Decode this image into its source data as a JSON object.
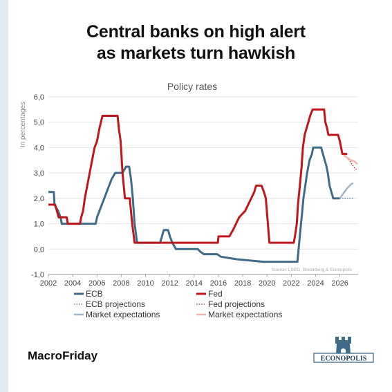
{
  "header": {
    "title_line1": "Central banks on high alert",
    "title_line2": "as markets turn hawkish"
  },
  "footer": {
    "brand": "MacroFriday",
    "logo_text": "ECONOPOLIS"
  },
  "colors": {
    "ecb": "#3f6a88",
    "ecb_projection": "#3f6a88",
    "ecb_market": "#9fb4c5",
    "fed": "#c0161b",
    "fed_projection": "#c0161b",
    "fed_market": "#f2b5ad"
  },
  "chart_data": {
    "type": "line",
    "title": "Policy rates",
    "ylabel": "In percentages",
    "xlabel": "",
    "xlim": [
      2002,
      2027.5
    ],
    "ylim": [
      -1.0,
      6.0
    ],
    "x_ticks": [
      2002,
      2004,
      2006,
      2008,
      2010,
      2012,
      2014,
      2016,
      2018,
      2020,
      2022,
      2024,
      2026
    ],
    "x_tick_labels": [
      "2002",
      "2004",
      "2006",
      "2008",
      "2010",
      "2012",
      "2014",
      "2016",
      "2018",
      "2020",
      "2022",
      "2024",
      "2026"
    ],
    "y_ticks": [
      -1.0,
      0.0,
      1.0,
      2.0,
      3.0,
      4.0,
      5.0,
      6.0
    ],
    "y_tick_labels": [
      "-1,0",
      "0,0",
      "1,0",
      "2,0",
      "3,0",
      "4,0",
      "5,0",
      "6,0"
    ],
    "grid": "horizontal",
    "source_note": "Source: LSEG, Bloomberg & Econopolis",
    "legend": [
      {
        "label": "ECB",
        "style": "solid",
        "color_key": "ecb"
      },
      {
        "label": "Fed",
        "style": "solid",
        "color_key": "fed"
      },
      {
        "label": "ECB projections",
        "style": "dotted",
        "color_key": "ecb_projection"
      },
      {
        "label": "Fed projections",
        "style": "dotted",
        "color_key": "fed_projection"
      },
      {
        "label": "Market expectations",
        "style": "solid-light",
        "color_key": "ecb_market"
      },
      {
        "label": "Market expectations",
        "style": "solid-light",
        "color_key": "fed_market"
      }
    ],
    "series": [
      {
        "name": "ECB",
        "color_key": "ecb",
        "style": "solid",
        "points": [
          [
            2002.0,
            2.25
          ],
          [
            2002.45,
            2.25
          ],
          [
            2002.5,
            1.75
          ],
          [
            2002.8,
            1.5
          ],
          [
            2003.0,
            1.25
          ],
          [
            2003.1,
            1.0
          ],
          [
            2005.0,
            1.0
          ],
          [
            2005.9,
            1.0
          ],
          [
            2006.0,
            1.25
          ],
          [
            2006.2,
            1.5
          ],
          [
            2006.4,
            1.75
          ],
          [
            2006.6,
            2.0
          ],
          [
            2006.8,
            2.25
          ],
          [
            2007.0,
            2.5
          ],
          [
            2007.2,
            2.75
          ],
          [
            2007.5,
            3.0
          ],
          [
            2008.1,
            3.0
          ],
          [
            2008.4,
            3.25
          ],
          [
            2008.65,
            3.25
          ],
          [
            2008.8,
            2.75
          ],
          [
            2008.95,
            2.0
          ],
          [
            2009.1,
            1.0
          ],
          [
            2009.3,
            0.25
          ],
          [
            2011.2,
            0.25
          ],
          [
            2011.35,
            0.5
          ],
          [
            2011.5,
            0.75
          ],
          [
            2011.85,
            0.75
          ],
          [
            2012.0,
            0.5
          ],
          [
            2012.2,
            0.25
          ],
          [
            2012.5,
            0.0
          ],
          [
            2014.3,
            0.0
          ],
          [
            2014.5,
            -0.1
          ],
          [
            2014.8,
            -0.2
          ],
          [
            2015.9,
            -0.2
          ],
          [
            2016.2,
            -0.3
          ],
          [
            2017.5,
            -0.4
          ],
          [
            2019.7,
            -0.5
          ],
          [
            2022.5,
            -0.5
          ],
          [
            2022.6,
            0.0
          ],
          [
            2022.75,
            0.75
          ],
          [
            2022.9,
            1.5
          ],
          [
            2023.0,
            2.0
          ],
          [
            2023.15,
            2.5
          ],
          [
            2023.3,
            3.0
          ],
          [
            2023.5,
            3.5
          ],
          [
            2023.7,
            3.75
          ],
          [
            2023.8,
            4.0
          ],
          [
            2024.45,
            4.0
          ],
          [
            2024.6,
            3.75
          ],
          [
            2024.75,
            3.5
          ],
          [
            2024.9,
            3.25
          ],
          [
            2025.0,
            3.0
          ],
          [
            2025.15,
            2.5
          ],
          [
            2025.3,
            2.25
          ],
          [
            2025.45,
            2.0
          ],
          [
            2026.0,
            2.0
          ]
        ]
      },
      {
        "name": "ECB projections",
        "color_key": "ecb_projection",
        "style": "dotted",
        "points": [
          [
            2026.0,
            2.0
          ],
          [
            2027.2,
            2.0
          ]
        ]
      },
      {
        "name": "Market expectations",
        "color_key": "ecb_market",
        "style": "solid-light",
        "points": [
          [
            2026.0,
            2.0
          ],
          [
            2026.3,
            2.2
          ],
          [
            2026.6,
            2.4
          ],
          [
            2026.9,
            2.55
          ],
          [
            2027.1,
            2.6
          ]
        ]
      },
      {
        "name": "Fed",
        "color_key": "fed",
        "style": "solid",
        "points": [
          [
            2002.0,
            1.75
          ],
          [
            2002.55,
            1.75
          ],
          [
            2002.85,
            1.25
          ],
          [
            2003.5,
            1.25
          ],
          [
            2003.6,
            1.0
          ],
          [
            2004.6,
            1.0
          ],
          [
            2004.7,
            1.25
          ],
          [
            2004.85,
            1.5
          ],
          [
            2005.0,
            2.0
          ],
          [
            2005.2,
            2.5
          ],
          [
            2005.4,
            3.0
          ],
          [
            2005.6,
            3.5
          ],
          [
            2005.8,
            4.0
          ],
          [
            2006.0,
            4.25
          ],
          [
            2006.2,
            4.75
          ],
          [
            2006.45,
            5.25
          ],
          [
            2007.7,
            5.25
          ],
          [
            2007.8,
            4.75
          ],
          [
            2007.95,
            4.25
          ],
          [
            2008.1,
            3.0
          ],
          [
            2008.3,
            2.0
          ],
          [
            2008.7,
            2.0
          ],
          [
            2008.9,
            1.0
          ],
          [
            2009.1,
            0.25
          ],
          [
            2015.95,
            0.25
          ],
          [
            2016.0,
            0.5
          ],
          [
            2016.9,
            0.5
          ],
          [
            2017.2,
            0.75
          ],
          [
            2017.45,
            1.0
          ],
          [
            2017.7,
            1.25
          ],
          [
            2018.2,
            1.5
          ],
          [
            2018.45,
            1.75
          ],
          [
            2018.7,
            2.0
          ],
          [
            2018.95,
            2.25
          ],
          [
            2019.1,
            2.5
          ],
          [
            2019.55,
            2.5
          ],
          [
            2019.75,
            2.25
          ],
          [
            2019.9,
            2.0
          ],
          [
            2020.2,
            0.25
          ],
          [
            2022.2,
            0.25
          ],
          [
            2022.3,
            0.5
          ],
          [
            2022.45,
            1.0
          ],
          [
            2022.55,
            1.75
          ],
          [
            2022.7,
            2.5
          ],
          [
            2022.85,
            3.25
          ],
          [
            2022.95,
            4.0
          ],
          [
            2023.1,
            4.5
          ],
          [
            2023.25,
            4.75
          ],
          [
            2023.4,
            5.0
          ],
          [
            2023.55,
            5.25
          ],
          [
            2023.75,
            5.5
          ],
          [
            2024.7,
            5.5
          ],
          [
            2024.8,
            5.0
          ],
          [
            2024.95,
            4.75
          ],
          [
            2025.05,
            4.5
          ],
          [
            2025.85,
            4.5
          ],
          [
            2026.0,
            4.25
          ],
          [
            2026.2,
            3.75
          ],
          [
            2026.6,
            3.75
          ]
        ]
      },
      {
        "name": "Fed projections",
        "color_key": "fed_projection",
        "style": "dotted",
        "points": [
          [
            2026.3,
            3.75
          ],
          [
            2026.6,
            3.6
          ],
          [
            2026.9,
            3.4
          ],
          [
            2027.2,
            3.2
          ],
          [
            2027.45,
            3.1
          ]
        ]
      },
      {
        "name": "Market expectations",
        "color_key": "fed_market",
        "style": "solid-light",
        "points": [
          [
            2026.3,
            3.7
          ],
          [
            2026.6,
            3.6
          ],
          [
            2026.9,
            3.5
          ],
          [
            2027.2,
            3.45
          ],
          [
            2027.45,
            3.35
          ]
        ]
      }
    ]
  }
}
